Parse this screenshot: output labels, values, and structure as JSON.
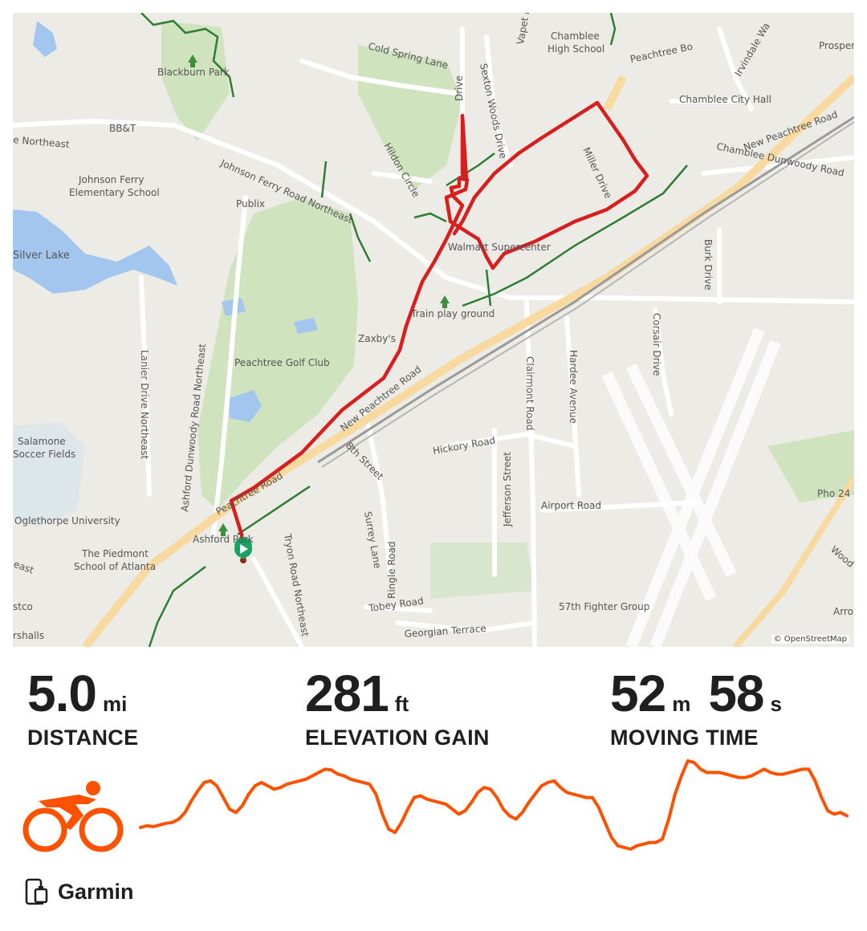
{
  "map": {
    "attribution": "© OpenStreetMap",
    "labels": {
      "cold_spring": "Cold Spring Lane",
      "drive_top": "Drive",
      "sexton": "Sexton Woods Drive",
      "vapet": "Vapet Road",
      "chamblee_hs_1": "Chamblee",
      "chamblee_hs_2": "High School",
      "peachtree_bo": "Peachtree Bo",
      "irvindale": "Irvindale Wa",
      "prosper": "Prosper",
      "blackburn": "Blackburn Park",
      "chamblee_city_hall": "Chamblee City Hall",
      "new_peachtree_top": "New Peachtree Road",
      "chamblee_dunwoody": "Chamblee Dunwoody Road",
      "bbt": "BB&T",
      "ne_left": "e Northeast",
      "hildon": "Hildon Circle",
      "johnson_ferry_rd": "Johnson Ferry Road Northeast",
      "miller": "Miller Drive",
      "jf_elem_1": "Johnson Ferry",
      "jf_elem_2": "Elementary School",
      "publix": "Publix",
      "silver_lake": "Silver Lake",
      "walmart": "Walmart Supercenter",
      "burk": "Burk Drive",
      "train_play": "Train play ground",
      "corsair": "Corsair Drive",
      "peachtree_golf": "Peachtree Golf Club",
      "zaxbys": "Zaxby's",
      "new_peachtree_mid": "New Peachtree Road",
      "clairmont": "Clairmont Road",
      "hardee": "Hardee Avenue",
      "lanier": "Lanier Drive Northeast",
      "ashford_dunwoody": "Ashford Dunwoody Road Northeast",
      "salamone_1": "Salamone",
      "salamone_2": "Soccer Fields",
      "hickory": "Hickory Road",
      "eighth": "8th Street",
      "jefferson": "Jefferson Street",
      "airport": "Airport Road",
      "pho": "Pho 24",
      "oglethorpe": "Oglethorpe University",
      "ashford_park": "Ashford Park",
      "peachtree_rd": "Peachtree Road",
      "tryon": "Tryon Road Northeast",
      "surrey": "Surrey Lane",
      "ringle": "Ringle Road",
      "piedmont_1": "The Piedmont",
      "piedmont_2": "School of Atlanta",
      "east_left": "east",
      "tobey": "Tobey Road",
      "georgian": "Georgian Terrace",
      "fighter": "57th Fighter Group",
      "stco": "stco",
      "rshalls": "rshalls",
      "wood": "Wood",
      "arro": "Arro"
    }
  },
  "stats": {
    "distance": {
      "value": "5.0",
      "unit": "mi",
      "label": "DISTANCE"
    },
    "elevation": {
      "value": "281",
      "unit": "ft",
      "label": "ELEVATION GAIN"
    },
    "moving_time": {
      "minutes": "52",
      "minutes_unit": "m",
      "seconds": "58",
      "seconds_unit": "s",
      "label": "MOVING TIME"
    }
  },
  "activity": {
    "type_icon": "cycling-icon",
    "accent_color": "#fc5200"
  },
  "elevation_profile": {
    "values": [
      30,
      32,
      31,
      33,
      35,
      36,
      40,
      48,
      62,
      74,
      84,
      86,
      80,
      66,
      52,
      48,
      56,
      70,
      80,
      84,
      80,
      76,
      78,
      82,
      84,
      86,
      88,
      92,
      96,
      100,
      99,
      94,
      92,
      88,
      86,
      84,
      82,
      70,
      46,
      28,
      24,
      36,
      52,
      66,
      68,
      64,
      62,
      60,
      58,
      52,
      46,
      50,
      60,
      72,
      78,
      76,
      66,
      52,
      44,
      40,
      48,
      60,
      70,
      80,
      84,
      86,
      78,
      72,
      70,
      68,
      66,
      66,
      54,
      36,
      18,
      8,
      6,
      4,
      8,
      10,
      12,
      12,
      16,
      40,
      70,
      92,
      110,
      108,
      100,
      96,
      96,
      96,
      94,
      92,
      90,
      90,
      92,
      96,
      100,
      96,
      94,
      94,
      96,
      98,
      100,
      100,
      86,
      66,
      50,
      46,
      48,
      44
    ],
    "line_color": "#fc5200"
  },
  "source": {
    "icon": "device-sync-icon",
    "name": "Garmin"
  }
}
